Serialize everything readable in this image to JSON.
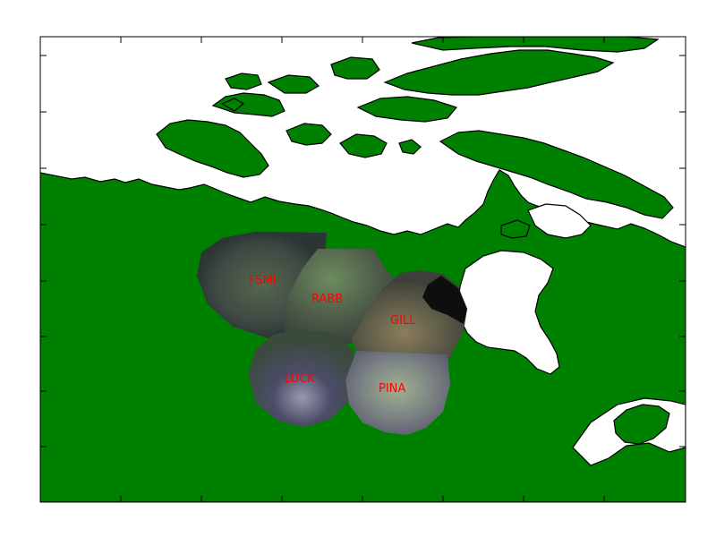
{
  "map": {
    "projection": "polar stereographic",
    "region": "Canada",
    "colors": {
      "ocean": "#ffffff",
      "land": "#008000",
      "coastline": "#000000",
      "frame": "#000000",
      "station_label": "#ff0000"
    },
    "stations": [
      {
        "code": "FSMI"
      },
      {
        "code": "RABB"
      },
      {
        "code": "GILL"
      },
      {
        "code": "LUCK"
      },
      {
        "code": "PINA"
      }
    ],
    "overlay": "all-sky auroral imager mosaic"
  }
}
